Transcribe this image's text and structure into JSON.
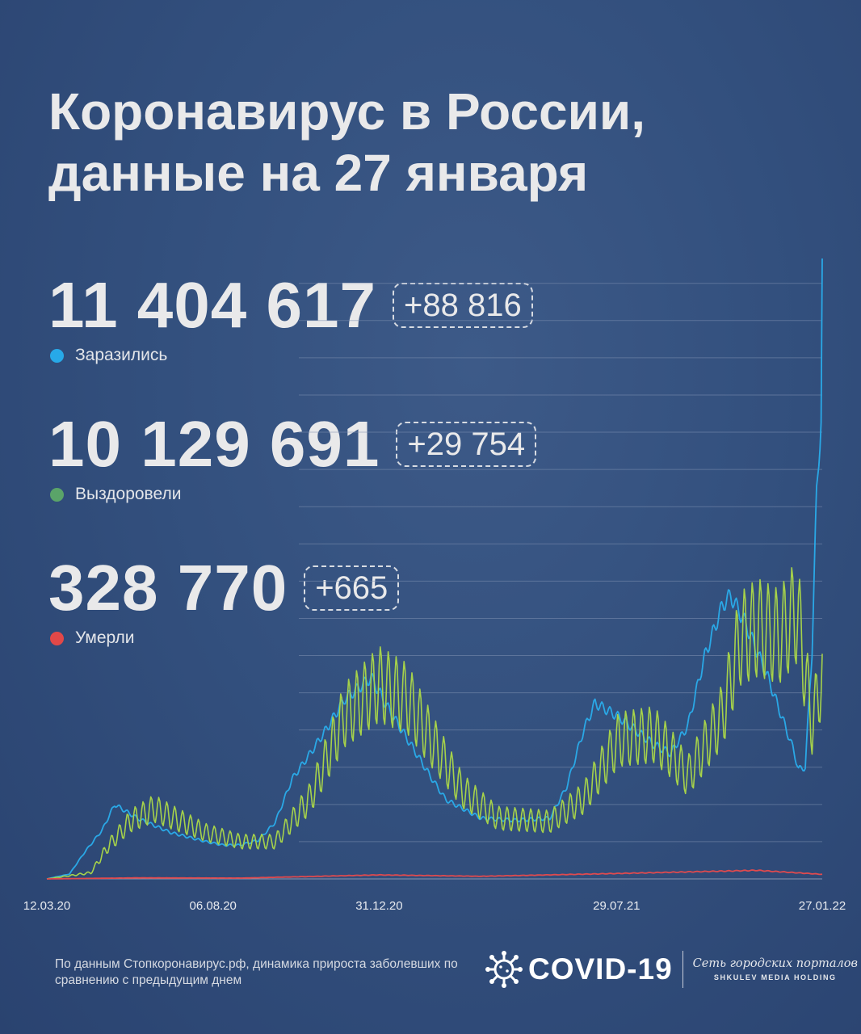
{
  "title": {
    "line1": "Коронавирус в России,",
    "line2": "данные на 27 января"
  },
  "stats": [
    {
      "value": "11 404 617",
      "delta": "+88 816",
      "label": "Заразились",
      "color": "#27a9e8"
    },
    {
      "value": "10 129 691",
      "delta": "+29 754",
      "label": "Выздоровели",
      "color": "#5aa469"
    },
    {
      "value": "328 770",
      "delta": "+665",
      "label": "Умерли",
      "color": "#e24848"
    }
  ],
  "footer": {
    "note": "По данным Стопкоронавирус.рф, динамика прироста заболевших по сравнению с предыдущим днем",
    "brand": "COVID-19",
    "portal": "Сеть городских порталов",
    "holding": "SHKULEV MEDIA HOLDING"
  },
  "chart_data": {
    "type": "line",
    "x_start": "12.03.20",
    "x_end": "27.01.22",
    "x_tick_labels": [
      "12.03.20",
      "06.08.20",
      "31.12.20",
      "29.07.21",
      "27.01.22"
    ],
    "ylim": [
      0,
      90000
    ],
    "y_grid_step": 5400,
    "grid": true,
    "series": [
      {
        "name": "Заразились",
        "color": "#2aa8e6",
        "points": [
          [
            "12.03.20",
            0
          ],
          [
            "01.04.20",
            700
          ],
          [
            "15.04.20",
            4000
          ],
          [
            "30.04.20",
            7100
          ],
          [
            "11.05.20",
            10800
          ],
          [
            "31.05.20",
            8800
          ],
          [
            "30.06.20",
            6700
          ],
          [
            "31.07.20",
            5400
          ],
          [
            "15.08.20",
            4900
          ],
          [
            "30.08.20",
            4900
          ],
          [
            "15.09.20",
            5600
          ],
          [
            "30.09.20",
            8200
          ],
          [
            "15.10.20",
            14500
          ],
          [
            "31.10.20",
            18200
          ],
          [
            "15.11.20",
            21900
          ],
          [
            "30.11.20",
            26000
          ],
          [
            "24.12.20",
            29200
          ],
          [
            "10.01.21",
            24200
          ],
          [
            "31.01.21",
            18700
          ],
          [
            "15.02.21",
            14700
          ],
          [
            "28.02.21",
            11500
          ],
          [
            "31.03.21",
            8800
          ],
          [
            "30.04.21",
            8500
          ],
          [
            "31.05.21",
            8800
          ],
          [
            "15.06.21",
            13400
          ],
          [
            "30.06.21",
            21600
          ],
          [
            "10.07.21",
            25500
          ],
          [
            "31.07.21",
            23500
          ],
          [
            "31.08.21",
            19500
          ],
          [
            "15.09.21",
            18200
          ],
          [
            "30.09.21",
            22200
          ],
          [
            "15.10.21",
            32300
          ],
          [
            "31.10.21",
            39800
          ],
          [
            "07.11.21",
            41100
          ],
          [
            "20.11.21",
            37100
          ],
          [
            "10.12.21",
            29200
          ],
          [
            "01.01.22",
            19000
          ],
          [
            "06.01.22",
            15900
          ],
          [
            "12.01.22",
            16200
          ],
          [
            "18.01.22",
            33200
          ],
          [
            "22.01.22",
            55700
          ],
          [
            "26.01.22",
            67000
          ],
          [
            "27.01.22",
            89000
          ]
        ]
      },
      {
        "name": "Выздоровели",
        "color": "#a6d24a",
        "points": [
          [
            "12.03.20",
            0
          ],
          [
            "20.04.20",
            900
          ],
          [
            "05.05.20",
            4700
          ],
          [
            "25.05.20",
            8400
          ],
          [
            "15.06.20",
            10200
          ],
          [
            "30.06.20",
            9000
          ],
          [
            "31.07.20",
            6700
          ],
          [
            "31.08.20",
            5400
          ],
          [
            "30.09.20",
            5400
          ],
          [
            "31.10.20",
            11700
          ],
          [
            "30.11.20",
            23600
          ],
          [
            "31.12.20",
            28200
          ],
          [
            "25.01.21",
            26100
          ],
          [
            "15.02.21",
            20200
          ],
          [
            "15.03.21",
            12700
          ],
          [
            "15.04.21",
            8800
          ],
          [
            "31.05.21",
            8300
          ],
          [
            "30.06.21",
            11700
          ],
          [
            "31.07.21",
            20200
          ],
          [
            "31.08.21",
            20900
          ],
          [
            "15.09.21",
            18200
          ],
          [
            "30.09.21",
            14900
          ],
          [
            "31.10.21",
            23800
          ],
          [
            "15.11.21",
            34700
          ],
          [
            "01.12.21",
            36400
          ],
          [
            "20.12.21",
            35100
          ],
          [
            "05.01.22",
            38900
          ],
          [
            "12.01.22",
            29800
          ],
          [
            "18.01.22",
            22400
          ],
          [
            "27.01.22",
            29800
          ]
        ]
      },
      {
        "name": "Умерли",
        "color": "#e04a4e",
        "points": [
          [
            "12.03.20",
            0
          ],
          [
            "31.05.20",
            150
          ],
          [
            "31.08.20",
            120
          ],
          [
            "31.12.20",
            580
          ],
          [
            "31.03.21",
            380
          ],
          [
            "31.07.21",
            790
          ],
          [
            "30.11.21",
            1240
          ],
          [
            "27.01.22",
            665
          ]
        ]
      }
    ]
  }
}
